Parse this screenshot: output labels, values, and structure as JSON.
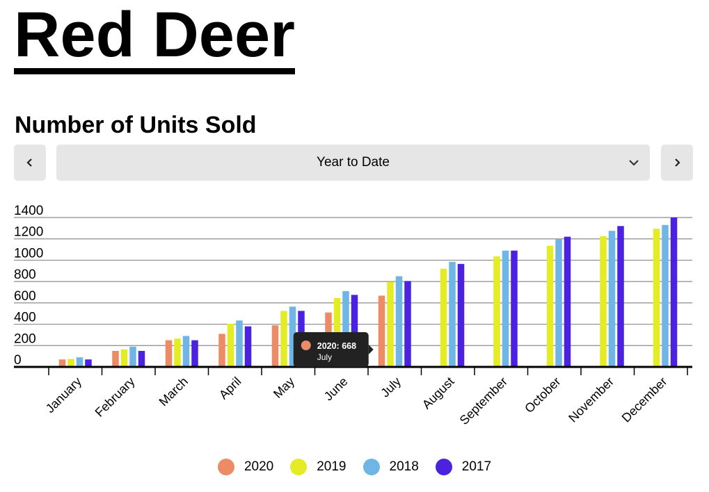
{
  "page": {
    "title": "Red Deer"
  },
  "section": {
    "title": "Number of Units Sold"
  },
  "controls": {
    "period_label": "Year to Date"
  },
  "tooltip": {
    "series": "2020",
    "value": 668,
    "title": "2020: 668",
    "subtitle": "July",
    "category_index": 6,
    "series_index": 0
  },
  "colors": {
    "2020": "#ec8b66",
    "2019": "#e3ec25",
    "2018": "#6fb5e6",
    "2017": "#4a22e0"
  },
  "chart_data": {
    "type": "bar",
    "title": "Number of Units Sold",
    "categories": [
      "January",
      "February",
      "March",
      "April",
      "May",
      "June",
      "July",
      "August",
      "September",
      "October",
      "November",
      "December"
    ],
    "ylim": [
      0,
      1400
    ],
    "yticks": [
      0,
      200,
      400,
      600,
      800,
      1000,
      1200,
      1400
    ],
    "grid": true,
    "legend_position": "bottom",
    "series": [
      {
        "name": "2020",
        "color": "#ec8b66",
        "values": [
          70,
          150,
          250,
          310,
          390,
          510,
          668,
          null,
          null,
          null,
          null,
          null
        ]
      },
      {
        "name": "2019",
        "color": "#e3ec25",
        "values": [
          75,
          165,
          265,
          405,
          525,
          645,
          795,
          920,
          1035,
          1135,
          1225,
          1295
        ]
      },
      {
        "name": "2018",
        "color": "#6fb5e6",
        "values": [
          90,
          190,
          290,
          435,
          565,
          710,
          850,
          985,
          1090,
          1200,
          1275,
          1330
        ]
      },
      {
        "name": "2017",
        "color": "#4a22e0",
        "values": [
          70,
          150,
          250,
          380,
          525,
          675,
          805,
          965,
          1090,
          1220,
          1320,
          1400
        ]
      }
    ]
  }
}
